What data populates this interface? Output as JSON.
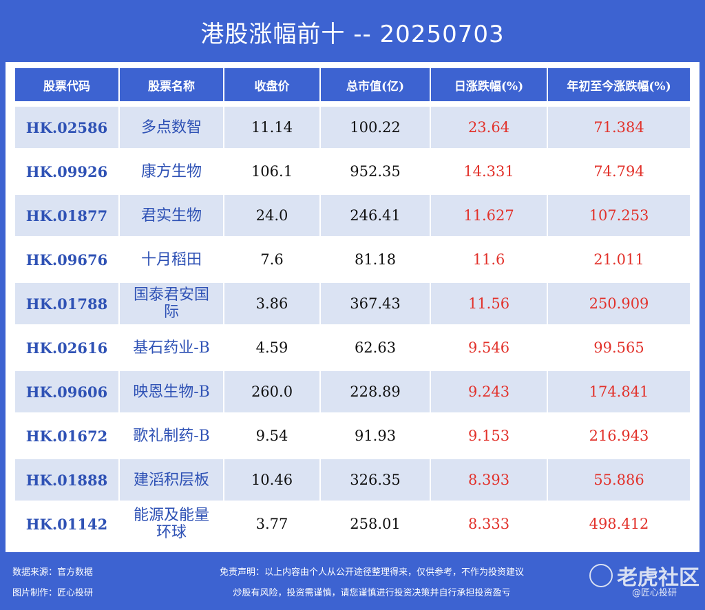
{
  "title": "港股涨幅前十 -- 20250703",
  "table": {
    "headers": [
      "股票代码",
      "股票名称",
      "收盘价",
      "总市值(亿)",
      "日涨跌幅(%)",
      "年初至今涨跌幅(%)"
    ],
    "rows": [
      [
        "HK.02586",
        "多点数智",
        "11.14",
        "100.22",
        "23.64",
        "71.384"
      ],
      [
        "HK.09926",
        "康方生物",
        "106.1",
        "952.35",
        "14.331",
        "74.794"
      ],
      [
        "HK.01877",
        "君实生物",
        "24.0",
        "246.41",
        "11.627",
        "107.253"
      ],
      [
        "HK.09676",
        "十月稻田",
        "7.6",
        "81.18",
        "11.6",
        "21.011"
      ],
      [
        "HK.01788",
        "国泰君安国际",
        "3.86",
        "367.43",
        "11.56",
        "250.909"
      ],
      [
        "HK.02616",
        "基石药业-B",
        "4.59",
        "62.63",
        "9.546",
        "99.565"
      ],
      [
        "HK.09606",
        "映恩生物-B",
        "260.0",
        "228.89",
        "9.243",
        "174.841"
      ],
      [
        "HK.01672",
        "歌礼制药-B",
        "9.54",
        "91.93",
        "9.153",
        "216.943"
      ],
      [
        "HK.01888",
        "建滔积层板",
        "10.46",
        "326.35",
        "8.393",
        "55.886"
      ],
      [
        "HK.01142",
        "能源及能量环球",
        "3.77",
        "258.01",
        "8.333",
        "498.412"
      ]
    ]
  },
  "footer": {
    "source": "数据来源：官方数据",
    "maker": "图片制作：匠心投研",
    "disclaimer1": "免责声明：以上内容由个人从公开途径整理得来，仅供参考，不作为投资建议",
    "disclaimer2": "炒股有风险，投资需谨慎，请您谨慎进行投资决策并自行承担投资盈亏",
    "watermark": "老虎社区",
    "watermark2": "@匠心投研"
  },
  "colors": {
    "background": "#3d63d1",
    "positive": "#e2322b",
    "code": "#2f52b5",
    "stripe": "#dbe3f3"
  }
}
